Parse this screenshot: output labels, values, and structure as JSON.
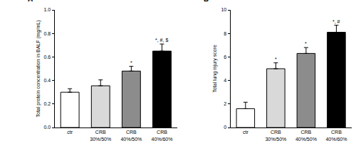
{
  "chart_data": [
    {
      "type": "bar",
      "title": "A",
      "y_label": "Total protein concentration in BALF (mg/mL)",
      "categories": [
        "ctr",
        "CRB 30%/50%",
        "CRB 40%/50%",
        "CRB 40%/60%"
      ],
      "values": [
        0.3,
        0.355,
        0.48,
        0.65
      ],
      "errors": [
        0.03,
        0.05,
        0.04,
        0.06
      ],
      "colors": [
        "#ffffff",
        "#d9d9d9",
        "#8c8c8c",
        "#000000"
      ],
      "ylim": [
        0,
        1.0
      ],
      "yticks": [
        {
          "value": 0,
          "label": "0.0"
        },
        {
          "value": 0.2,
          "label": "0.2"
        },
        {
          "value": 0.4,
          "label": "0.4"
        },
        {
          "value": 0.6,
          "label": "0.6"
        },
        {
          "value": 0.8,
          "label": "0.8"
        },
        {
          "value": 1.0,
          "label": "1.0"
        }
      ],
      "grid": false,
      "annotations": [
        {
          "category": "CRB 40%/50%",
          "text": "*"
        },
        {
          "category": "CRB 40%/60%",
          "text": "*, #, $"
        }
      ]
    },
    {
      "type": "bar",
      "title": "B",
      "y_label": "Total lung injury score",
      "categories": [
        "ctr",
        "CRB 30%/50%",
        "CRB 40%/50%",
        "CRB 40%/60%"
      ],
      "values": [
        1.6,
        5.0,
        6.3,
        8.1
      ],
      "errors": [
        0.55,
        0.5,
        0.5,
        0.6
      ],
      "colors": [
        "#ffffff",
        "#d9d9d9",
        "#8c8c8c",
        "#000000"
      ],
      "ylim": [
        0,
        10
      ],
      "yticks": [
        0,
        2,
        4,
        6,
        8,
        10
      ],
      "grid": false,
      "annotations": [
        {
          "category": "CRB 30%/50%",
          "text": "*"
        },
        {
          "category": "CRB 40%/50%",
          "text": "*"
        },
        {
          "category": "CRB 40%/60%",
          "text": "*, #"
        }
      ]
    }
  ]
}
